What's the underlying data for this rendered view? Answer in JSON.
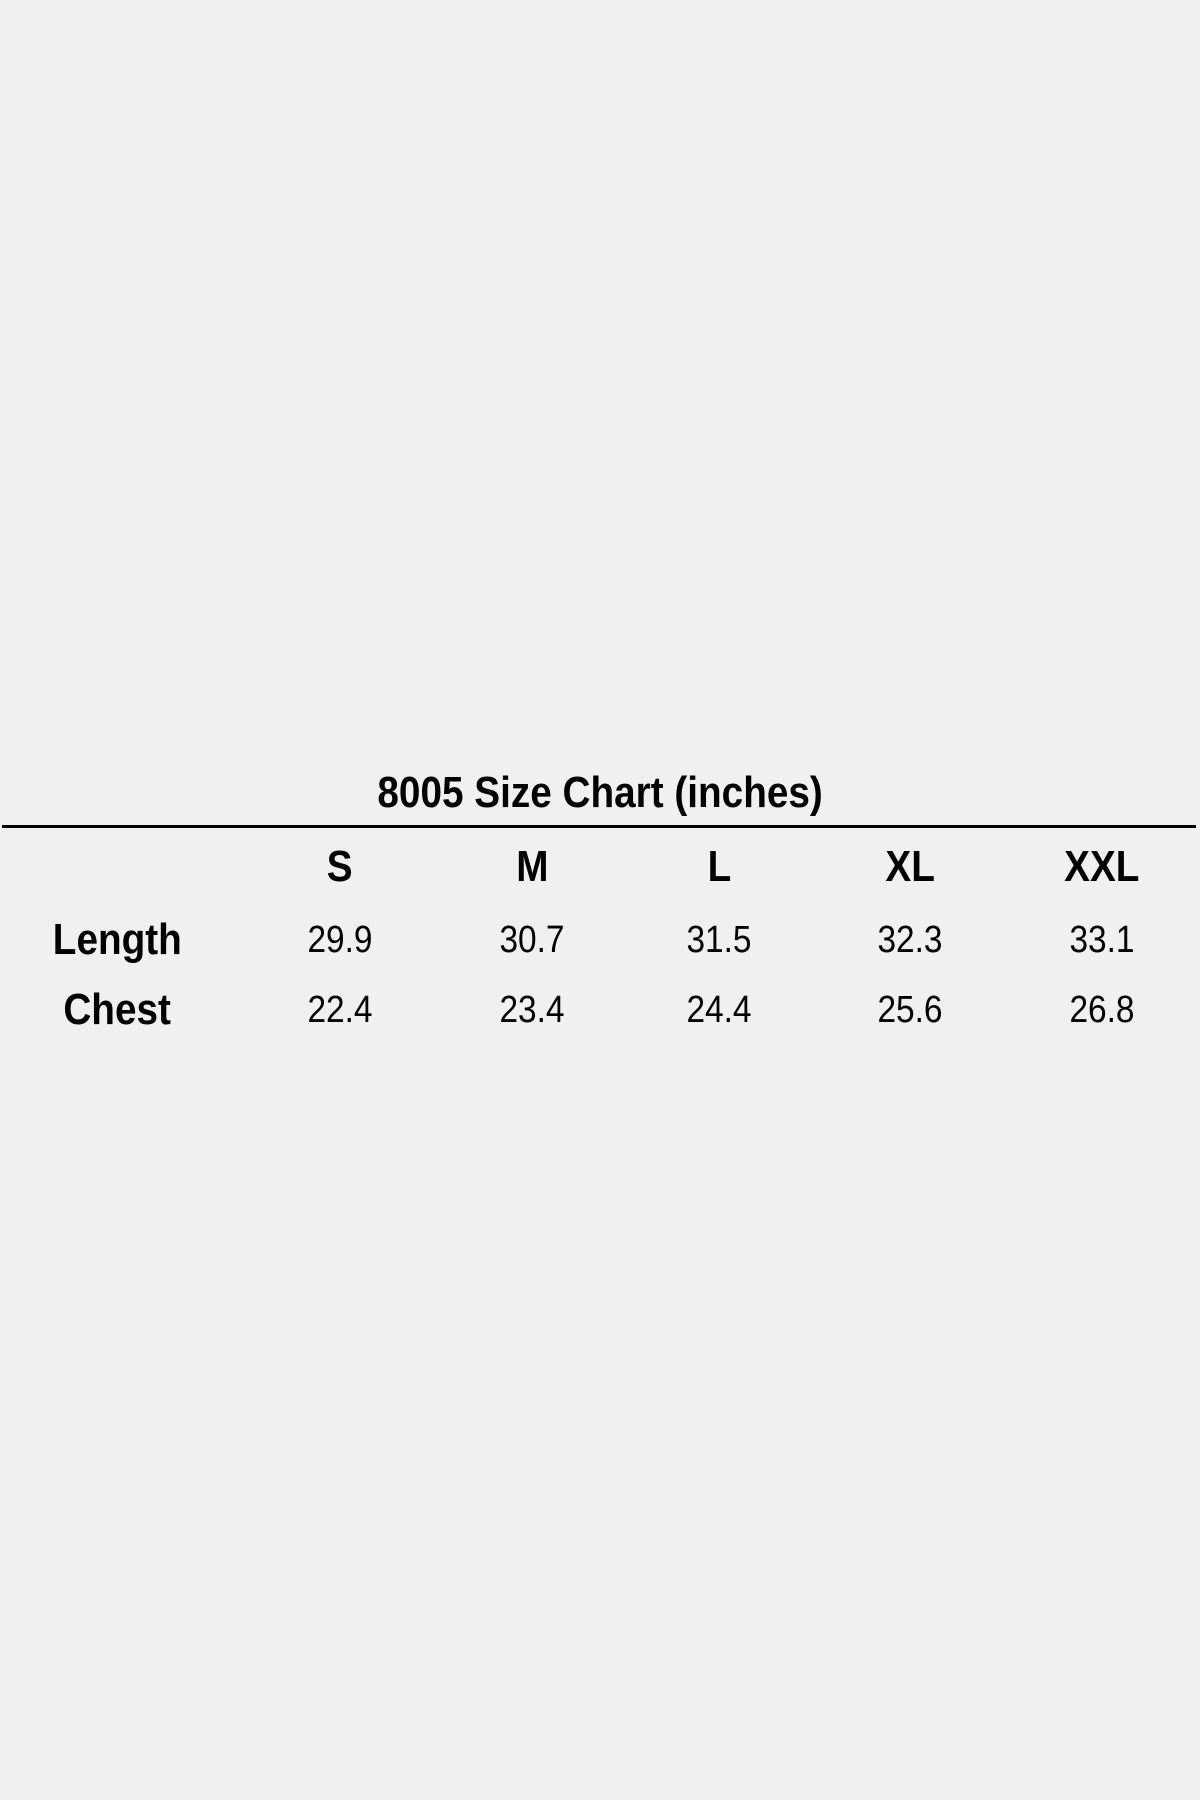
{
  "title": "8005 Size Chart (inches)",
  "sizes": [
    "S",
    "M",
    "L",
    "XL",
    "XXL"
  ],
  "rows": [
    {
      "label": "Length",
      "values": [
        "29.9",
        "30.7",
        "31.5",
        "32.3",
        "33.1"
      ]
    },
    {
      "label": "Chest",
      "values": [
        "22.4",
        "23.4",
        "24.4",
        "25.6",
        "26.8"
      ]
    }
  ]
}
